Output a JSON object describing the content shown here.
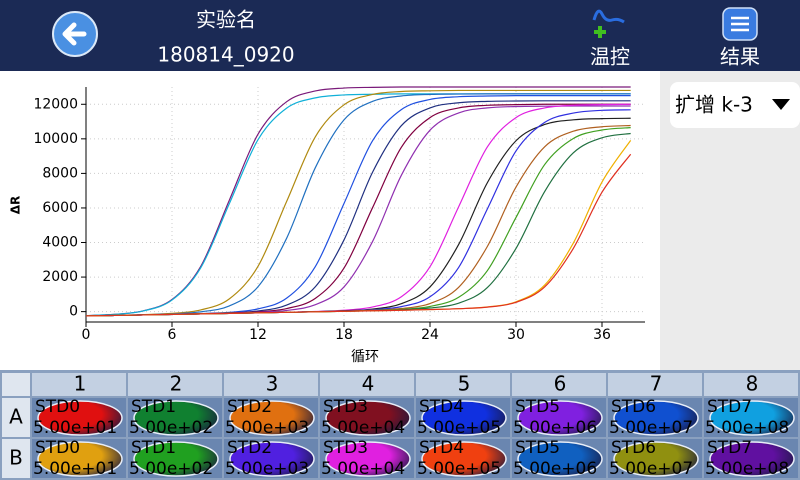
{
  "header": {
    "title": "实验名",
    "subtitle": "180814_0920"
  },
  "buttons": [
    "温控",
    "结果"
  ],
  "dropdown": "扩增 k-3",
  "chart_data": {
    "type": "line",
    "ylabel": "ΔR",
    "xlabel": "循环",
    "xlim": [
      0,
      39
    ],
    "ylim": [
      -600,
      13000
    ],
    "xticks": [
      0,
      6,
      12,
      18,
      24,
      30,
      36
    ],
    "yticks": [
      0,
      2000,
      4000,
      6000,
      8000,
      10000,
      12000
    ],
    "grid": true,
    "x": [
      0,
      2,
      4,
      6,
      8,
      10,
      12,
      14,
      16,
      18,
      20,
      22,
      24,
      26,
      28,
      30,
      32,
      34,
      36,
      38
    ],
    "series": [
      {
        "color": "#7a1a7a",
        "values": [
          -230,
          -160,
          50,
          700,
          2610,
          6450,
          10270,
          12150,
          12770,
          12940,
          12980,
          13000,
          13000,
          13000,
          13000,
          13000,
          13000,
          13000,
          13000,
          13000
        ]
      },
      {
        "color": "#10b0d8",
        "values": [
          -230,
          -160,
          40,
          670,
          2530,
          6250,
          9950,
          11780,
          12370,
          12540,
          12580,
          12600,
          12600,
          12600,
          12600,
          12600,
          12600,
          12600,
          12600,
          12600
        ]
      },
      {
        "color": "#b08a10",
        "values": [
          -250,
          -220,
          -170,
          -100,
          100,
          740,
          2620,
          6380,
          10120,
          11970,
          12570,
          12740,
          12780,
          12800,
          12800,
          12800,
          12800,
          12800,
          12800,
          12800
        ]
      },
      {
        "color": "#2070c0",
        "values": [
          -250,
          -220,
          -180,
          -130,
          -10,
          330,
          1440,
          4250,
          8330,
          11100,
          12170,
          12480,
          12570,
          12590,
          12600,
          12600,
          12600,
          12600,
          12600,
          12600
        ]
      },
      {
        "color": "#2050e0",
        "values": [
          -250,
          -220,
          -190,
          -160,
          -110,
          -40,
          160,
          780,
          2610,
          6260,
          9900,
          11690,
          12280,
          12440,
          12480,
          12500,
          12500,
          12500,
          12500,
          12500
        ]
      },
      {
        "color": "#203080",
        "values": [
          -250,
          -220,
          -190,
          -160,
          -120,
          -70,
          40,
          380,
          1440,
          4150,
          8080,
          10760,
          11790,
          12090,
          12170,
          12190,
          12200,
          12200,
          12200,
          12200
        ]
      },
      {
        "color": "#800040",
        "values": [
          -250,
          -220,
          -190,
          -160,
          -130,
          -80,
          -10,
          180,
          770,
          2520,
          6030,
          9510,
          11230,
          11790,
          11940,
          11980,
          12000,
          12000,
          12000,
          12000
        ]
      },
      {
        "color": "#9030b0",
        "values": [
          -250,
          -220,
          -190,
          -160,
          -130,
          -90,
          -40,
          70,
          400,
          1430,
          4070,
          7890,
          10500,
          11500,
          11790,
          11870,
          11890,
          11900,
          11900,
          11900
        ]
      },
      {
        "color": "#e020e0",
        "values": [
          -250,
          -220,
          -190,
          -160,
          -130,
          -100,
          -70,
          -40,
          10,
          80,
          270,
          860,
          2600,
          6070,
          9530,
          11230,
          11790,
          11940,
          11980,
          12000
        ]
      },
      {
        "color": "#202020",
        "values": [
          -250,
          -220,
          -190,
          -160,
          -130,
          -100,
          -70,
          -40,
          0,
          50,
          150,
          460,
          1430,
          3890,
          7460,
          9890,
          10830,
          11100,
          11170,
          11190
        ]
      },
      {
        "color": "#3030e0",
        "values": [
          -250,
          -220,
          -190,
          -160,
          -130,
          -100,
          -70,
          -40,
          -10,
          40,
          110,
          290,
          860,
          2560,
          5940,
          9300,
          10950,
          11490,
          11650,
          11680
        ]
      },
      {
        "color": "#b06020",
        "values": [
          -250,
          -220,
          -190,
          -160,
          -130,
          -100,
          -70,
          -40,
          -10,
          30,
          80,
          180,
          470,
          1410,
          3770,
          7210,
          9540,
          10440,
          10700,
          10770
        ]
      },
      {
        "color": "#40a020",
        "values": [
          -250,
          -220,
          -190,
          -160,
          -130,
          -100,
          -70,
          -40,
          -10,
          20,
          60,
          130,
          300,
          830,
          2370,
          5450,
          8510,
          10020,
          10510,
          10650
        ]
      },
      {
        "color": "#207040",
        "values": [
          -250,
          -220,
          -190,
          -160,
          -130,
          -100,
          -70,
          -40,
          -10,
          20,
          60,
          110,
          210,
          490,
          1390,
          3660,
          6950,
          9190,
          10060,
          10310
        ]
      },
      {
        "color": "#f0b000",
        "values": [
          -250,
          -220,
          -190,
          -160,
          -130,
          -100,
          -70,
          -40,
          -10,
          20,
          50,
          80,
          120,
          170,
          270,
          570,
          1540,
          3970,
          7500,
          9910
        ]
      },
      {
        "color": "#e03020",
        "values": [
          -250,
          -220,
          -190,
          -160,
          -130,
          -100,
          -70,
          -40,
          -10,
          20,
          50,
          80,
          120,
          170,
          260,
          540,
          1430,
          3660,
          6910,
          9110
        ]
      }
    ]
  },
  "plate": {
    "columns": [
      "1",
      "2",
      "3",
      "4",
      "5",
      "6",
      "7",
      "8"
    ],
    "rows": [
      {
        "label": "A",
        "cells": [
          {
            "name": "STD0",
            "conc": "5.00e+01",
            "color": "#e01010"
          },
          {
            "name": "STD1",
            "conc": "5.00e+02",
            "color": "#108030"
          },
          {
            "name": "STD2",
            "conc": "5.00e+03",
            "color": "#e07010"
          },
          {
            "name": "STD3",
            "conc": "5.00e+04",
            "color": "#801020"
          },
          {
            "name": "STD4",
            "conc": "5.00e+05",
            "color": "#1030e0"
          },
          {
            "name": "STD5",
            "conc": "5.00e+06",
            "color": "#8020e0"
          },
          {
            "name": "STD6",
            "conc": "5.00e+07",
            "color": "#1050d0"
          },
          {
            "name": "STD7",
            "conc": "5.00e+08",
            "color": "#10a0e0"
          }
        ]
      },
      {
        "label": "B",
        "cells": [
          {
            "name": "STD0",
            "conc": "5.00e+01",
            "color": "#e0a010"
          },
          {
            "name": "STD1",
            "conc": "5.00e+02",
            "color": "#20a020"
          },
          {
            "name": "STD2",
            "conc": "5.00e+03",
            "color": "#5020e0"
          },
          {
            "name": "STD3",
            "conc": "5.00e+04",
            "color": "#e020e0"
          },
          {
            "name": "STD4",
            "conc": "5.00e+05",
            "color": "#f04010"
          },
          {
            "name": "STD5",
            "conc": "5.00e+06",
            "color": "#1060c0"
          },
          {
            "name": "STD6",
            "conc": "5.00e+07",
            "color": "#909010"
          },
          {
            "name": "STD7",
            "conc": "5.00e+08",
            "color": "#6010a0"
          }
        ]
      }
    ]
  }
}
